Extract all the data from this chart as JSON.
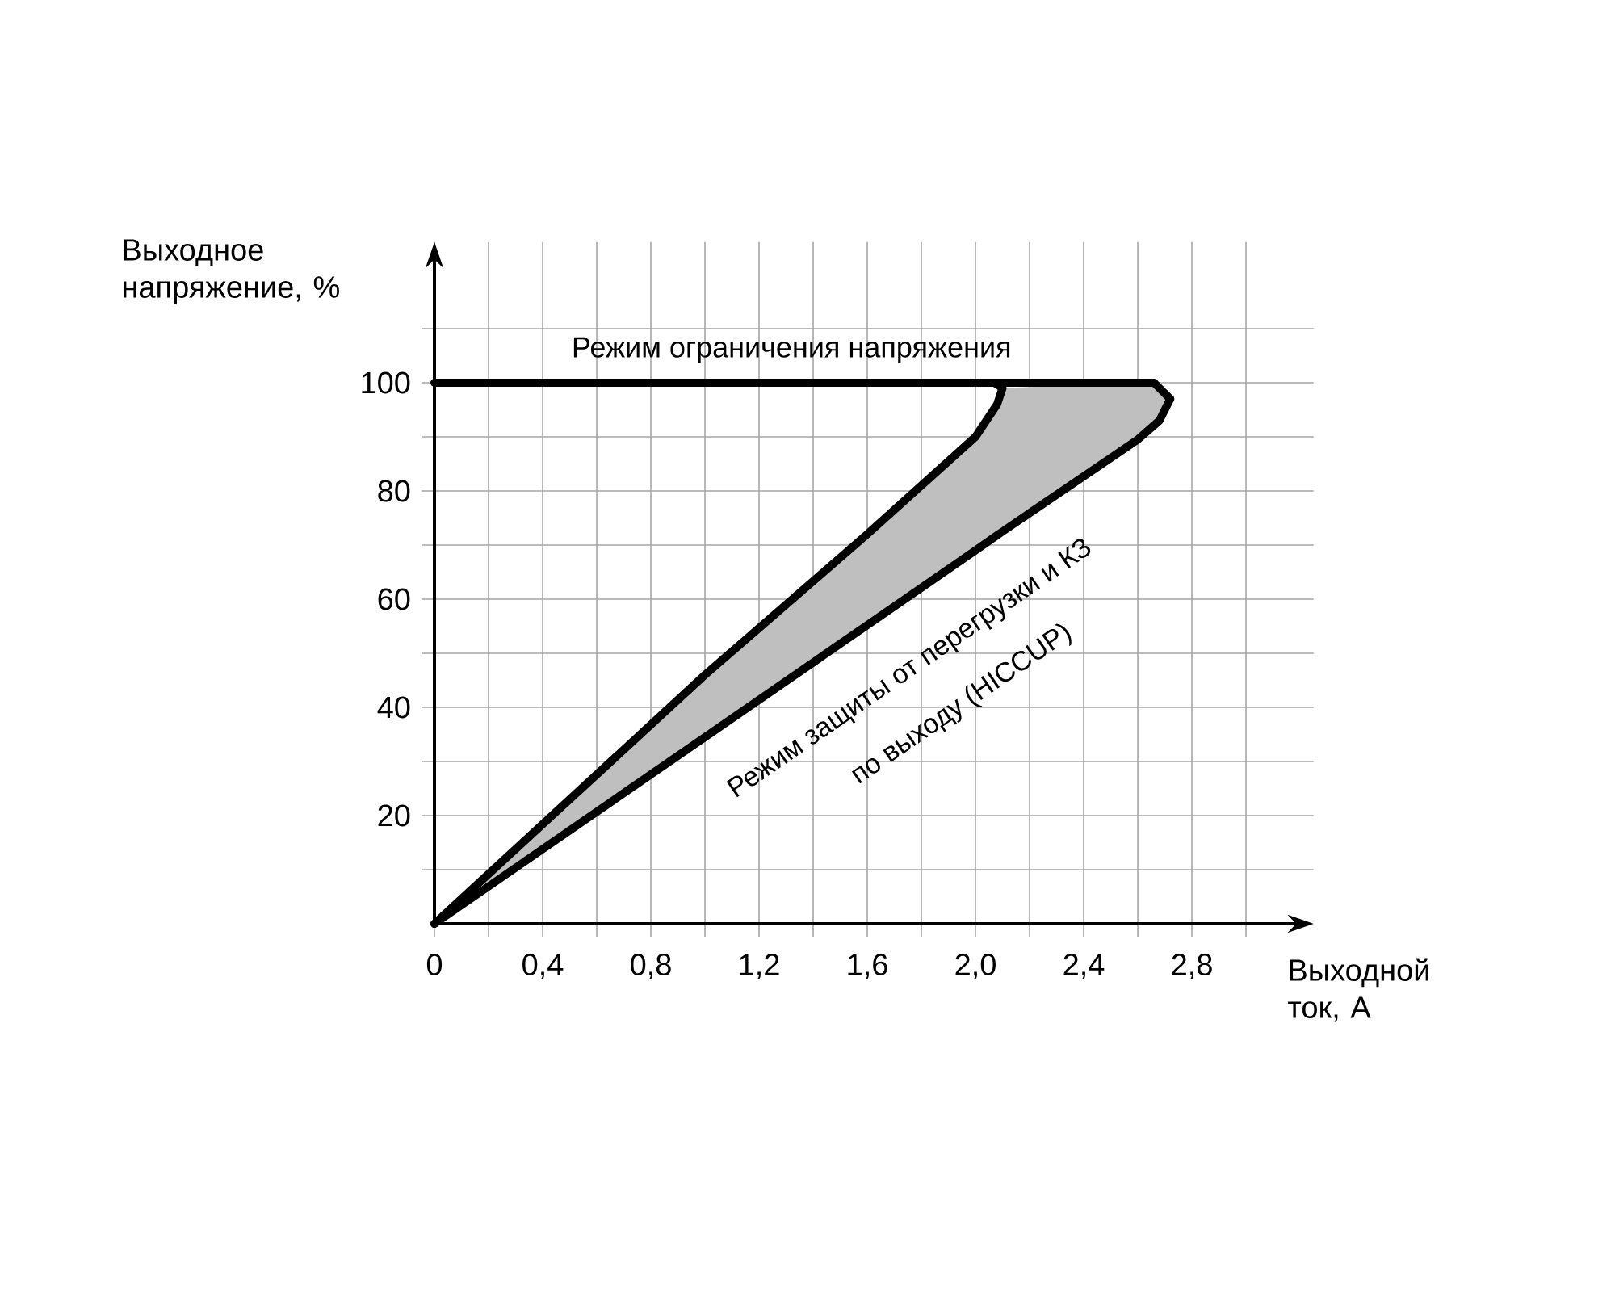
{
  "chart_data": {
    "type": "line",
    "xlabel": "Выходной ток, А",
    "ylabel": "Выходное напряжение, %",
    "xlim": [
      0,
      3.25
    ],
    "ylim": [
      0,
      126
    ],
    "xticks": [
      {
        "value": 0,
        "label": "0"
      },
      {
        "value": 0.2,
        "label": null
      },
      {
        "value": 0.4,
        "label": "0,4"
      },
      {
        "value": 0.6,
        "label": null
      },
      {
        "value": 0.8,
        "label": "0,8"
      },
      {
        "value": 1.0,
        "label": null
      },
      {
        "value": 1.2,
        "label": "1,2"
      },
      {
        "value": 1.4,
        "label": null
      },
      {
        "value": 1.6,
        "label": "1,6"
      },
      {
        "value": 1.8,
        "label": null
      },
      {
        "value": 2.0,
        "label": "2,0"
      },
      {
        "value": 2.2,
        "label": null
      },
      {
        "value": 2.4,
        "label": "2,4"
      },
      {
        "value": 2.6,
        "label": null
      },
      {
        "value": 2.8,
        "label": "2,8"
      },
      {
        "value": 3.0,
        "label": null
      }
    ],
    "yticks": [
      {
        "value": 10,
        "label": null
      },
      20,
      {
        "value": 30,
        "label": null
      },
      40,
      {
        "value": 50,
        "label": null
      },
      60,
      {
        "value": 70,
        "label": null
      },
      80,
      {
        "value": 90,
        "label": null
      },
      100,
      {
        "value": 110,
        "label": null
      }
    ],
    "grid": true,
    "marker": "none",
    "line_style": "solid",
    "series": [
      {
        "color": "#000000",
        "x": [
          0,
          2.66,
          2.72
        ],
        "values": [
          100,
          100,
          97
        ]
      },
      {
        "color": "#000000",
        "x": [
          0,
          1.0,
          1.6,
          2.0,
          2.08,
          2.1,
          2.07
        ],
        "values": [
          0,
          46,
          72,
          90,
          96,
          99,
          100
        ]
      },
      {
        "color": "#000000",
        "x": [
          0,
          1.0,
          2.0,
          2.08,
          2.1,
          2.6,
          2.68,
          2.72
        ],
        "values": [
          0,
          34.5,
          69,
          71.8,
          72.5,
          89.5,
          93,
          97
        ],
        "lower": [
          0,
          34.5,
          69,
          71.8,
          72.5,
          89.5,
          93,
          97
        ],
        "upper": [
          0,
          46,
          90,
          96,
          99,
          100,
          100,
          97
        ]
      }
    ],
    "annotations": [
      "Режим ограничения напряжения",
      "Режим защиты от перегрузки и КЗ",
      "по выходу (HICCUP)"
    ]
  }
}
